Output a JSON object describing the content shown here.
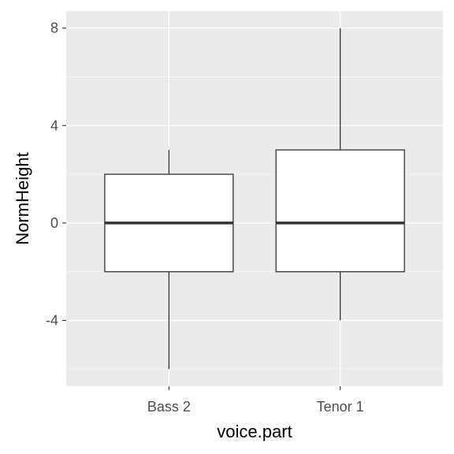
{
  "chart_data": {
    "type": "boxplot",
    "title": "",
    "xlabel": "voice.part",
    "ylabel": "NormHeight",
    "categories": [
      "Bass 2",
      "Tenor 1"
    ],
    "boxes": [
      {
        "category": "Bass 2",
        "whisker_low": -6,
        "q1": -2,
        "median": 0,
        "q3": 2,
        "whisker_high": 3
      },
      {
        "category": "Tenor 1",
        "whisker_low": -4,
        "q1": -2,
        "median": 0,
        "q3": 3,
        "whisker_high": 8
      }
    ],
    "ylim": [
      -6.7,
      8.7
    ],
    "yticks": [
      -4,
      0,
      4,
      8
    ],
    "ytick_labels": [
      "-4",
      "0",
      "4",
      "8"
    ],
    "grid": true,
    "colors": {
      "panel_background": "#ebebeb",
      "grid_major": "#ffffff",
      "box_fill": "#ffffff",
      "box_line": "#333333"
    }
  }
}
